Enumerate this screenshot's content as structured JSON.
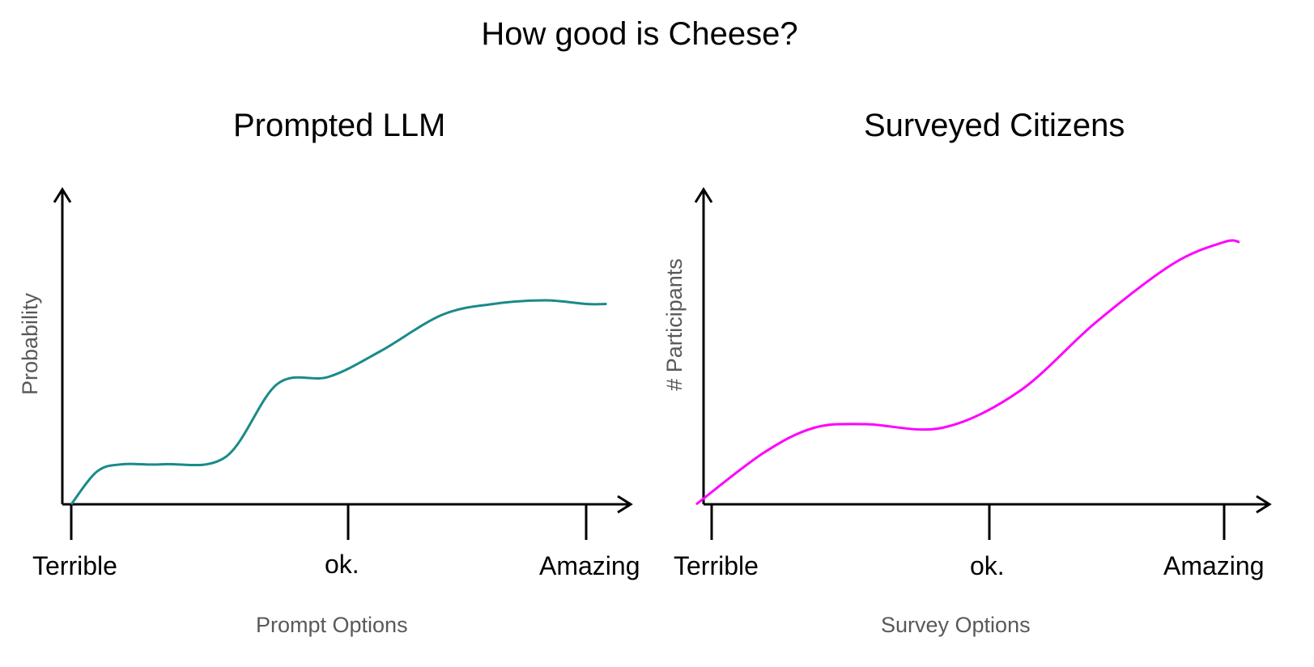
{
  "title": "How good is Cheese?",
  "chart_data": [
    {
      "type": "line",
      "title": "Prompted LLM",
      "xlabel": "Prompt Options",
      "ylabel": "Probability",
      "categories": [
        "Terrible",
        "ok.",
        "Amazing"
      ],
      "color": "#1a8a8a",
      "series": [
        {
          "x": [
            0.0,
            0.05,
            0.1,
            0.18,
            0.3,
            0.4,
            0.5,
            0.6,
            0.72,
            0.82,
            0.92,
            1.0,
            1.04
          ],
          "y": [
            0.0,
            0.09,
            0.11,
            0.11,
            0.13,
            0.33,
            0.35,
            0.42,
            0.52,
            0.55,
            0.56,
            0.55,
            0.55
          ]
        }
      ]
    },
    {
      "type": "line",
      "title": "Surveyed Citizens",
      "xlabel": "Survey Options",
      "ylabel": "# Participants",
      "categories": [
        "Terrible",
        "ok.",
        "Amazing"
      ],
      "color": "#ff00ff",
      "series": [
        {
          "x": [
            -0.03,
            0.1,
            0.2,
            0.3,
            0.45,
            0.6,
            0.75,
            0.9,
            1.0,
            1.03
          ],
          "y": [
            0.0,
            0.14,
            0.21,
            0.22,
            0.21,
            0.31,
            0.5,
            0.66,
            0.72,
            0.72
          ]
        }
      ]
    }
  ]
}
